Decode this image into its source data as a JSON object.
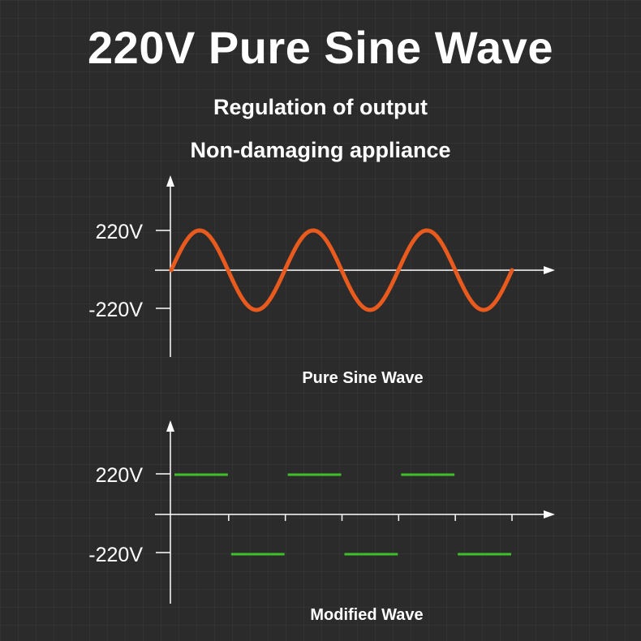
{
  "header": {
    "title": "220V Pure Sine Wave",
    "subtitle_1": "Regulation of output",
    "subtitle_2": "Non-damaging appliance"
  },
  "chart_data": [
    {
      "type": "line",
      "title": "Pure Sine Wave",
      "y_tick_labels": [
        "220V",
        "-220V"
      ],
      "y_ticks": [
        220,
        -220
      ],
      "ylim": [
        -220,
        220
      ],
      "cycles": 3,
      "x": [
        0,
        0.25,
        0.5,
        0.75,
        1,
        1.25,
        1.5,
        1.75,
        2,
        2.25,
        2.5,
        2.75,
        3
      ],
      "values": [
        0,
        220,
        0,
        -220,
        0,
        220,
        0,
        -220,
        0,
        220,
        0,
        -220,
        0
      ],
      "color": "#e85a1e",
      "grid": false
    },
    {
      "type": "line",
      "title": "Modified Wave",
      "y_tick_labels": [
        "220V",
        "-220V"
      ],
      "y_ticks": [
        220,
        -220
      ],
      "ylim": [
        -220,
        220
      ],
      "segments": [
        {
          "x_start": 0,
          "x_end": 0.5,
          "value": 220
        },
        {
          "x_start": 0.5,
          "x_end": 1,
          "value": -220
        },
        {
          "x_start": 1,
          "x_end": 1.5,
          "value": 220
        },
        {
          "x_start": 1.5,
          "x_end": 2,
          "value": -220
        },
        {
          "x_start": 2,
          "x_end": 2.5,
          "value": 220
        },
        {
          "x_start": 2.5,
          "x_end": 3,
          "value": -220
        }
      ],
      "color": "#3fc028",
      "grid": false
    }
  ]
}
